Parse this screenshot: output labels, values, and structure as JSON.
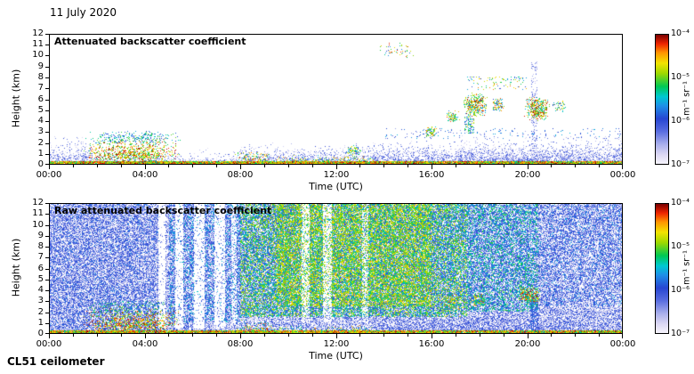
{
  "page": {
    "date_label": "11 July 2020",
    "instrument_label": "CL51 ceilometer",
    "background_color": "#ffffff",
    "axis_color": "#000000"
  },
  "colorbar": {
    "tick_labels": [
      "10⁻⁴",
      "10⁻⁵",
      "10⁻⁶",
      "10⁻⁷"
    ],
    "unit_label": "m⁻¹ sr⁻¹",
    "scale": "log",
    "range_min": 1e-07,
    "range_max": 0.0001,
    "stops": [
      [
        0.0,
        "#f6f4fc"
      ],
      [
        0.07,
        "#dcd8f3"
      ],
      [
        0.15,
        "#aab0ec"
      ],
      [
        0.25,
        "#5a6ee0"
      ],
      [
        0.35,
        "#2746d2"
      ],
      [
        0.45,
        "#1e90e8"
      ],
      [
        0.52,
        "#00c8d2"
      ],
      [
        0.6,
        "#00c853"
      ],
      [
        0.7,
        "#9ed900"
      ],
      [
        0.78,
        "#f2e400"
      ],
      [
        0.86,
        "#ff9500"
      ],
      [
        0.93,
        "#ee2400"
      ],
      [
        1.0,
        "#7a0000"
      ]
    ]
  },
  "chart_data": [
    {
      "type": "heatmap",
      "title": "Attenuated backscatter coefficient",
      "xlabel": "Time (UTC)",
      "ylabel": "Height (km)",
      "xlim_hours": [
        0,
        24
      ],
      "ylim_km": [
        0,
        12
      ],
      "xtick_labels": [
        "00:00",
        "04:00",
        "08:00",
        "12:00",
        "16:00",
        "20:00",
        "00:00"
      ],
      "ytick_labels": [
        "0",
        "1",
        "2",
        "3",
        "4",
        "5",
        "6",
        "7",
        "8",
        "9",
        "10",
        "11",
        "12"
      ],
      "color_scale": {
        "type": "log",
        "min": 1e-07,
        "max": 0.0001,
        "unit": "m⁻¹ sr⁻¹"
      },
      "seed": 11,
      "features": [
        {
          "name": "boundary-layer-aerosol",
          "t": [
            0,
            24
          ],
          "h": [
            0,
            1.7
          ],
          "d": 0.5,
          "v": [
            0.04,
            0.3
          ],
          "fadeTop": 2
        },
        {
          "name": "night-lofted-aerosol",
          "t": [
            0,
            1.8
          ],
          "h": [
            0,
            2.7
          ],
          "d": 0.35,
          "v": [
            0.05,
            0.33
          ],
          "fadeTop": 1.4
        },
        {
          "name": "midday-aerosol",
          "t": [
            8,
            14
          ],
          "h": [
            0,
            2.1
          ],
          "d": 0.3,
          "v": [
            0.05,
            0.33
          ],
          "fadeTop": 1.6
        },
        {
          "name": "afternoon-boundary-layer",
          "t": [
            13.5,
            24
          ],
          "h": [
            0,
            2.5
          ],
          "d": 0.45,
          "v": [
            0.04,
            0.32
          ],
          "fadeTop": 1.8
        },
        {
          "name": "evening-residual-layer",
          "t": [
            17,
            24
          ],
          "h": [
            0,
            3.3
          ],
          "d": 0.3,
          "v": [
            0.04,
            0.3
          ],
          "fadeTop": 2
        },
        {
          "name": "clear-morning-gap",
          "t": [
            5.6,
            7.8
          ],
          "h": [
            0.45,
            3.2
          ],
          "d": 0.6,
          "erase": true
        },
        {
          "name": "surface-return",
          "t": [
            0,
            24
          ],
          "h": [
            0,
            0.28
          ],
          "d": 0.97,
          "v": [
            0.55,
            1.0
          ]
        },
        {
          "name": "morning-stratus-strong",
          "t": [
            1.4,
            5.5
          ],
          "h": [
            0,
            2.6
          ],
          "d": 0.85,
          "v": [
            0.55,
            1.0
          ],
          "fadeTop": 1.1,
          "soft": true
        },
        {
          "name": "morning-stratus-top-fringe",
          "t": [
            1.4,
            5.5
          ],
          "h": [
            1.7,
            3.1
          ],
          "d": 0.28,
          "v": [
            0.3,
            0.7
          ],
          "soft": true
        },
        {
          "name": "fog-breakup-cloud",
          "t": [
            7.7,
            9.6
          ],
          "h": [
            0,
            1.3
          ],
          "d": 0.7,
          "v": [
            0.45,
            0.95
          ],
          "fadeTop": 1.3,
          "soft": true
        },
        {
          "name": "late-morning-surface-plumes",
          "t": [
            9.6,
            13.6
          ],
          "h": [
            0,
            0.9
          ],
          "d": 0.5,
          "v": [
            0.4,
            0.9
          ],
          "fadeTop": 1.5
        },
        {
          "name": "noon-cloud-patch",
          "t": [
            12.4,
            13.1
          ],
          "h": [
            0.8,
            1.7
          ],
          "d": 0.55,
          "v": [
            0.35,
            0.85
          ],
          "soft": true
        },
        {
          "name": "cirrus-specks",
          "t": [
            13.8,
            15.3
          ],
          "h": [
            9.8,
            11.4
          ],
          "d": 0.1,
          "v": [
            0.3,
            0.95
          ],
          "soft": true
        },
        {
          "name": "cloud-1540",
          "t": [
            15.6,
            16.3
          ],
          "h": [
            2.4,
            3.5
          ],
          "d": 0.5,
          "v": [
            0.35,
            0.9
          ],
          "soft": true
        },
        {
          "name": "cloud-1640",
          "t": [
            16.6,
            17.2
          ],
          "h": [
            3.8,
            5.0
          ],
          "d": 0.6,
          "v": [
            0.4,
            0.95
          ],
          "soft": true
        },
        {
          "name": "cloud-1720",
          "t": [
            17.3,
            18.4
          ],
          "h": [
            4.2,
            6.6
          ],
          "d": 0.65,
          "v": [
            0.4,
            1.0
          ],
          "soft": true
        },
        {
          "name": "virga-1730",
          "t": [
            17.4,
            17.8
          ],
          "h": [
            2.8,
            4.4
          ],
          "d": 0.35,
          "v": [
            0.3,
            0.8
          ]
        },
        {
          "name": "cloud-1830",
          "t": [
            18.5,
            19.1
          ],
          "h": [
            4.8,
            6.2
          ],
          "d": 0.5,
          "v": [
            0.35,
            0.95
          ],
          "soft": true
        },
        {
          "name": "cloud-2000",
          "t": [
            19.9,
            21.0
          ],
          "h": [
            4.0,
            6.2
          ],
          "d": 0.7,
          "v": [
            0.45,
            1.0
          ],
          "soft": true
        },
        {
          "name": "cloud-2110",
          "t": [
            21.0,
            21.7
          ],
          "h": [
            4.8,
            6.0
          ],
          "d": 0.3,
          "v": [
            0.3,
            0.8
          ],
          "soft": true
        },
        {
          "name": "high-specks-evening",
          "t": [
            17.5,
            20.0
          ],
          "h": [
            6.9,
            8.1
          ],
          "d": 0.08,
          "v": [
            0.3,
            0.9
          ]
        },
        {
          "name": "vertical-streak-2015",
          "t": [
            20.2,
            20.45
          ],
          "h": [
            0,
            9.5
          ],
          "d": 0.22,
          "v": [
            0.08,
            0.3
          ]
        },
        {
          "name": "sparse-dots-above-bl",
          "t": [
            14,
            24
          ],
          "h": [
            2.3,
            3.3
          ],
          "d": 0.05,
          "v": [
            0.15,
            0.5
          ]
        }
      ]
    },
    {
      "type": "heatmap",
      "title": "Raw attenuated backscatter coefficient",
      "xlabel": "Time (UTC)",
      "ylabel": "Height (km)",
      "xlim_hours": [
        0,
        24
      ],
      "ylim_km": [
        0,
        12
      ],
      "xtick_labels": [
        "00:00",
        "04:00",
        "08:00",
        "12:00",
        "16:00",
        "20:00",
        "00:00"
      ],
      "ytick_labels": [
        "0",
        "1",
        "2",
        "3",
        "4",
        "5",
        "6",
        "7",
        "8",
        "9",
        "10",
        "11",
        "12"
      ],
      "color_scale": {
        "type": "log",
        "min": 1e-07,
        "max": 0.0001,
        "unit": "m⁻¹ sr⁻¹"
      },
      "seed": 77,
      "features": [
        {
          "name": "background-noise",
          "t": [
            0,
            24
          ],
          "h": [
            0,
            12
          ],
          "d": 0.6,
          "v": [
            0.03,
            0.38
          ]
        },
        {
          "name": "night-noise-dense",
          "t": [
            0,
            4.6
          ],
          "h": [
            0,
            12
          ],
          "d": 0.3,
          "v": [
            0.08,
            0.45
          ]
        },
        {
          "name": "dawn-noise",
          "t": [
            5,
            8
          ],
          "h": [
            1,
            12
          ],
          "d": 0.35,
          "v": [
            0.2,
            0.55
          ]
        },
        {
          "name": "daylight-solar-noise",
          "t": [
            8,
            17.5
          ],
          "h": [
            1.5,
            12
          ],
          "d": 0.55,
          "v": [
            0.35,
            0.78
          ]
        },
        {
          "name": "midday-noise-peak",
          "t": [
            9.5,
            16
          ],
          "h": [
            2.5,
            12
          ],
          "d": 0.45,
          "v": [
            0.5,
            0.85
          ]
        },
        {
          "name": "evening-noise",
          "t": [
            17.5,
            20.5
          ],
          "h": [
            2,
            12
          ],
          "d": 0.4,
          "v": [
            0.3,
            0.65
          ]
        },
        {
          "name": "dusk-noise",
          "t": [
            20.5,
            24
          ],
          "h": [
            2.5,
            12
          ],
          "d": 0.22,
          "v": [
            0.18,
            0.5
          ]
        },
        {
          "name": "clear-stripe-0435",
          "t": [
            4.55,
            4.85
          ],
          "h": [
            0.4,
            12
          ],
          "d": 0.85,
          "erase": true
        },
        {
          "name": "clear-stripe-0520",
          "t": [
            5.25,
            5.6
          ],
          "h": [
            0.4,
            12
          ],
          "d": 0.8,
          "erase": true
        },
        {
          "name": "clear-stripe-0605",
          "t": [
            6.05,
            6.5
          ],
          "h": [
            0.4,
            12
          ],
          "d": 0.85,
          "erase": true
        },
        {
          "name": "clear-stripe-0655",
          "t": [
            6.9,
            7.35
          ],
          "h": [
            0.4,
            12
          ],
          "d": 0.8,
          "erase": true
        },
        {
          "name": "clear-stripe-0740",
          "t": [
            7.6,
            7.85
          ],
          "h": [
            1,
            12
          ],
          "d": 0.6,
          "erase": true
        },
        {
          "name": "clear-stripe-1035",
          "t": [
            10.55,
            10.9
          ],
          "h": [
            1,
            12
          ],
          "d": 0.6,
          "erase": true
        },
        {
          "name": "clear-stripe-1130",
          "t": [
            11.45,
            11.85
          ],
          "h": [
            1,
            12
          ],
          "d": 0.65,
          "erase": true
        },
        {
          "name": "clear-stripe-1310",
          "t": [
            13.1,
            13.35
          ],
          "h": [
            1,
            12
          ],
          "d": 0.5,
          "erase": true
        },
        {
          "name": "surface-return",
          "t": [
            0,
            24
          ],
          "h": [
            0,
            0.28
          ],
          "d": 0.97,
          "v": [
            0.55,
            1.0
          ]
        },
        {
          "name": "morning-stratus-strong",
          "t": [
            1.4,
            5.5
          ],
          "h": [
            0,
            2.6
          ],
          "d": 0.85,
          "v": [
            0.55,
            1.0
          ],
          "fadeTop": 1.1,
          "soft": true
        },
        {
          "name": "morning-stratus-top-fringe",
          "t": [
            1.4,
            5.5
          ],
          "h": [
            1.7,
            3.1
          ],
          "d": 0.28,
          "v": [
            0.3,
            0.7
          ],
          "soft": true
        },
        {
          "name": "fog-breakup-cloud",
          "t": [
            7.7,
            9.6
          ],
          "h": [
            0,
            1.3
          ],
          "d": 0.7,
          "v": [
            0.45,
            0.95
          ],
          "fadeTop": 1.3,
          "soft": true
        },
        {
          "name": "late-morning-surface-plumes",
          "t": [
            9.6,
            13.6
          ],
          "h": [
            0,
            0.8
          ],
          "d": 0.5,
          "v": [
            0.4,
            0.9
          ],
          "fadeTop": 1.5
        },
        {
          "name": "afternoon-boundary-layer",
          "t": [
            13.5,
            24
          ],
          "h": [
            0,
            2.2
          ],
          "d": 0.5,
          "v": [
            0.06,
            0.35
          ],
          "fadeTop": 1.5
        },
        {
          "name": "cloud-1640",
          "t": [
            16.5,
            17.3
          ],
          "h": [
            2.2,
            3.6
          ],
          "d": 0.6,
          "v": [
            0.4,
            0.95
          ],
          "soft": true
        },
        {
          "name": "cloud-1740",
          "t": [
            17.6,
            18.3
          ],
          "h": [
            2.4,
            3.8
          ],
          "d": 0.6,
          "v": [
            0.4,
            0.95
          ],
          "soft": true
        },
        {
          "name": "cloud-1940",
          "t": [
            19.6,
            20.6
          ],
          "h": [
            2.6,
            4.4
          ],
          "d": 0.65,
          "v": [
            0.45,
            1.0
          ],
          "soft": true
        },
        {
          "name": "vertical-streak-2015",
          "t": [
            20.15,
            20.5
          ],
          "h": [
            0,
            3.5
          ],
          "d": 0.5,
          "v": [
            0.2,
            0.45
          ]
        }
      ]
    }
  ]
}
